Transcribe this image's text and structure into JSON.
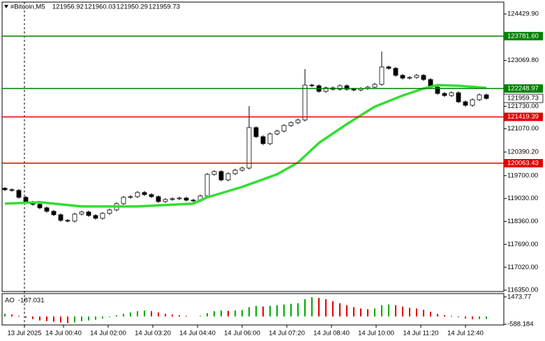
{
  "chart_data": [
    {
      "type": "candlestick",
      "title": "#Bitcoin,M5",
      "quote": [
        121956.92,
        121960.03,
        121950.29,
        121959.73
      ],
      "color": "#000000",
      "open": [
        119330,
        119289,
        119269,
        119065,
        118922,
        118861,
        118759,
        118657,
        118556,
        118392,
        118371,
        118575,
        118636,
        118534,
        118453,
        118596,
        118698,
        118881,
        119065,
        119085,
        119208,
        119146,
        119085,
        118942,
        119004,
        119024,
        119044,
        118983,
        118963,
        119106,
        119738,
        119820,
        119575,
        119758,
        119860,
        119922,
        121105,
        120840,
        120636,
        120921,
        121003,
        121166,
        121248,
        121329,
        122349,
        122329,
        122166,
        122268,
        122227,
        122329,
        122227,
        122206,
        122247,
        122288,
        122370,
        122880,
        122839,
        122634,
        122553,
        122573,
        122634,
        122512,
        122288,
        122104,
        122043,
        122125,
        121860,
        121758,
        121921,
        122063
      ],
      "high": [
        119370,
        119329,
        119309,
        119105,
        118962,
        118901,
        118799,
        118697,
        118596,
        118432,
        118615,
        118676,
        118676,
        118574,
        118636,
        118738,
        118921,
        119105,
        119125,
        119248,
        119248,
        119186,
        119125,
        119044,
        119064,
        119084,
        119084,
        119023,
        119146,
        119778,
        119860,
        119860,
        119798,
        119900,
        119962,
        121736,
        121145,
        120880,
        120961,
        121043,
        121206,
        121288,
        121369,
        122818,
        122389,
        122369,
        122308,
        122308,
        122369,
        122369,
        122267,
        122287,
        122328,
        122410,
        123328,
        122920,
        122879,
        122674,
        122613,
        122674,
        122674,
        122552,
        122328,
        122144,
        122165,
        122165,
        121900,
        121961,
        122103,
        122103
      ],
      "low": [
        119249,
        119229,
        119025,
        118882,
        118821,
        118719,
        118617,
        118516,
        118352,
        118331,
        118331,
        118535,
        118494,
        118413,
        118413,
        118556,
        118658,
        118841,
        119025,
        119045,
        119106,
        119045,
        118902,
        118902,
        118964,
        118984,
        118943,
        118923,
        118923,
        119066,
        119698,
        119535,
        119535,
        119718,
        119820,
        119882,
        120800,
        120596,
        120596,
        120881,
        120963,
        121126,
        121208,
        121289,
        122289,
        122126,
        122126,
        122187,
        122187,
        122187,
        122166,
        122166,
        122207,
        122248,
        122330,
        122799,
        122594,
        122513,
        122513,
        122533,
        122472,
        122248,
        122064,
        122003,
        122003,
        121820,
        121718,
        121718,
        121881,
        121920
      ],
      "close": [
        119289,
        119269,
        119065,
        118922,
        118861,
        118759,
        118657,
        118556,
        118392,
        118371,
        118575,
        118636,
        118534,
        118453,
        118596,
        118698,
        118881,
        119065,
        119085,
        119208,
        119146,
        119085,
        118942,
        119004,
        119024,
        119044,
        118983,
        118963,
        119106,
        119738,
        119820,
        119575,
        119758,
        119860,
        119922,
        121105,
        120840,
        120636,
        120921,
        121003,
        121166,
        121248,
        121329,
        122349,
        122329,
        122166,
        122268,
        122227,
        122329,
        122227,
        122206,
        122247,
        122288,
        122370,
        122880,
        122839,
        122634,
        122553,
        122573,
        122634,
        122512,
        122288,
        122104,
        122043,
        122125,
        121860,
        121758,
        121921,
        122063,
        121960
      ],
      "ma": {
        "color": "#33dd33",
        "x": [
          0,
          5,
          11,
          19,
          27,
          29,
          34,
          39,
          42,
          45,
          49,
          53,
          57,
          60,
          62,
          65,
          69
        ],
        "values": [
          118881,
          118922,
          118800,
          118800,
          118881,
          119065,
          119371,
          119738,
          120085,
          120656,
          121207,
          121717,
          122043,
          122247,
          122349,
          122329,
          122268
        ]
      },
      "xlim": [
        -0.4,
        71.5
      ],
      "ylim": [
        116310.8,
        124776.8
      ],
      "yticks": [
        {
          "value": 124429.9,
          "label": "124429.90"
        },
        {
          "value": 123069.8,
          "label": "123069.80"
        },
        {
          "value": 121730,
          "label": "121730.00"
        },
        {
          "value": 121070,
          "label": "121070.00"
        },
        {
          "value": 120390.2,
          "label": "120390.20"
        },
        {
          "value": 119700,
          "label": "119700.00"
        },
        {
          "value": 119030,
          "label": "119030.00"
        },
        {
          "value": 118360,
          "label": "118360.00"
        },
        {
          "value": 117690,
          "label": "117690.00"
        },
        {
          "value": 117020,
          "label": "117020.00"
        },
        {
          "value": 116350,
          "label": "116350.00"
        }
      ],
      "levels": [
        {
          "value": 123781.6,
          "label": "123781.60",
          "color": "#008000"
        },
        {
          "value": 122248.97,
          "label": "122248.97",
          "color": "#008000"
        },
        {
          "value": 121419.39,
          "label": "121419.39",
          "color": "#e00000"
        },
        {
          "value": 120063.43,
          "label": "120063.43",
          "color": "#e00000"
        }
      ],
      "last_price": 121959.73,
      "xticks": [
        {
          "value": 2.8,
          "label": "13 Jul 2025"
        },
        {
          "value": 8.4,
          "label": "14 Jul 00:40"
        },
        {
          "value": 14.8,
          "label": "14 Jul 02:00"
        },
        {
          "value": 21.2,
          "label": "14 Jul 03:20"
        },
        {
          "value": 27.6,
          "label": "14 Jul 04:40"
        },
        {
          "value": 34,
          "label": "14 Jul 06:00"
        },
        {
          "value": 40.4,
          "label": "14 Jul 07:20"
        },
        {
          "value": 46.8,
          "label": "14 Jul 08:40"
        },
        {
          "value": 53.2,
          "label": "14 Jul 10:00"
        },
        {
          "value": 59.6,
          "label": "14 Jul 11:20"
        },
        {
          "value": 66,
          "label": "14 Jul 12:40"
        }
      ]
    },
    {
      "type": "bar",
      "name": "AO",
      "up_color": "#00a800",
      "down_color": "#e00000",
      "values": [
        200,
        150,
        50,
        -100,
        -200,
        -300,
        -350,
        -400,
        -450,
        -500,
        -450,
        -350,
        -300,
        -250,
        -150,
        -50,
        100,
        200,
        300,
        400,
        450,
        400,
        300,
        200,
        150,
        100,
        50,
        0,
        50,
        250,
        400,
        450,
        420,
        450,
        480,
        700,
        800,
        750,
        800,
        850,
        900,
        950,
        1000,
        1300,
        1450,
        1400,
        1300,
        1150,
        1000,
        850,
        700,
        600,
        550,
        600,
        850,
        900,
        850,
        750,
        650,
        600,
        500,
        350,
        200,
        100,
        50,
        -50,
        -150,
        -200,
        -200,
        -187.031
      ],
      "ylim": [
        -640,
        1620
      ],
      "yticks": [
        1473.77,
        -588.184
      ]
    }
  ]
}
